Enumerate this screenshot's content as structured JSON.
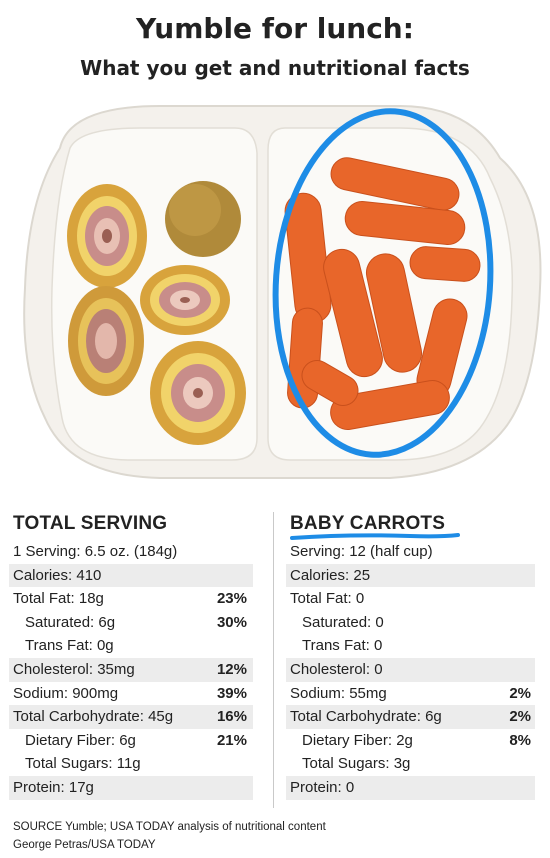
{
  "header": {
    "title": "Yumble for lunch:",
    "subtitle": "What you get and nutritional facts"
  },
  "colors": {
    "highlight_circle": "#1e8ce6",
    "carrot": "#e8662a",
    "tray": "#f4f1ec",
    "row_shade": "#ececec"
  },
  "total_serving": {
    "title": "TOTAL SERVING",
    "rows": [
      {
        "label": "1 Serving: 6.5 oz. (184g)",
        "pct": "",
        "shade": false,
        "indent": false
      },
      {
        "label": "Calories: 410",
        "pct": "",
        "shade": true,
        "indent": false
      },
      {
        "label": "Total Fat: 18g",
        "pct": "23%",
        "shade": false,
        "indent": false
      },
      {
        "label": "Saturated: 6g",
        "pct": "30%",
        "shade": false,
        "indent": true
      },
      {
        "label": "Trans Fat: 0g",
        "pct": "",
        "shade": false,
        "indent": true
      },
      {
        "label": "Cholesterol: 35mg",
        "pct": "12%",
        "shade": true,
        "indent": false
      },
      {
        "label": "Sodium: 900mg",
        "pct": "39%",
        "shade": false,
        "indent": false
      },
      {
        "label": "Total Carbohydrate: 45g",
        "pct": "16%",
        "shade": true,
        "indent": false
      },
      {
        "label": "Dietary Fiber: 6g",
        "pct": "21%",
        "shade": false,
        "indent": true
      },
      {
        "label": "Total Sugars: 11g",
        "pct": "",
        "shade": false,
        "indent": true
      },
      {
        "label": "Protein: 17g",
        "pct": "",
        "shade": true,
        "indent": false
      }
    ]
  },
  "baby_carrots": {
    "title": "BABY CARROTS",
    "rows": [
      {
        "label": "Serving: 12 (half cup)",
        "pct": "",
        "shade": false,
        "indent": false
      },
      {
        "label": "Calories: 25",
        "pct": "",
        "shade": true,
        "indent": false
      },
      {
        "label": "Total Fat: 0",
        "pct": "",
        "shade": false,
        "indent": false
      },
      {
        "label": "Saturated: 0",
        "pct": "",
        "shade": false,
        "indent": true
      },
      {
        "label": "Trans Fat: 0",
        "pct": "",
        "shade": false,
        "indent": true
      },
      {
        "label": "Cholesterol: 0",
        "pct": "",
        "shade": true,
        "indent": false
      },
      {
        "label": "Sodium: 55mg",
        "pct": "2%",
        "shade": false,
        "indent": false
      },
      {
        "label": "Total Carbohydrate: 6g",
        "pct": "2%",
        "shade": true,
        "indent": false
      },
      {
        "label": "Dietary Fiber: 2g",
        "pct": "8%",
        "shade": false,
        "indent": true
      },
      {
        "label": "Total Sugars: 3g",
        "pct": "",
        "shade": false,
        "indent": true
      },
      {
        "label": "Protein: 0",
        "pct": "",
        "shade": true,
        "indent": false
      }
    ]
  },
  "footer": {
    "source": "SOURCE Yumble; USA TODAY analysis of nutritional content",
    "credit": "George Petras/USA TODAY"
  }
}
